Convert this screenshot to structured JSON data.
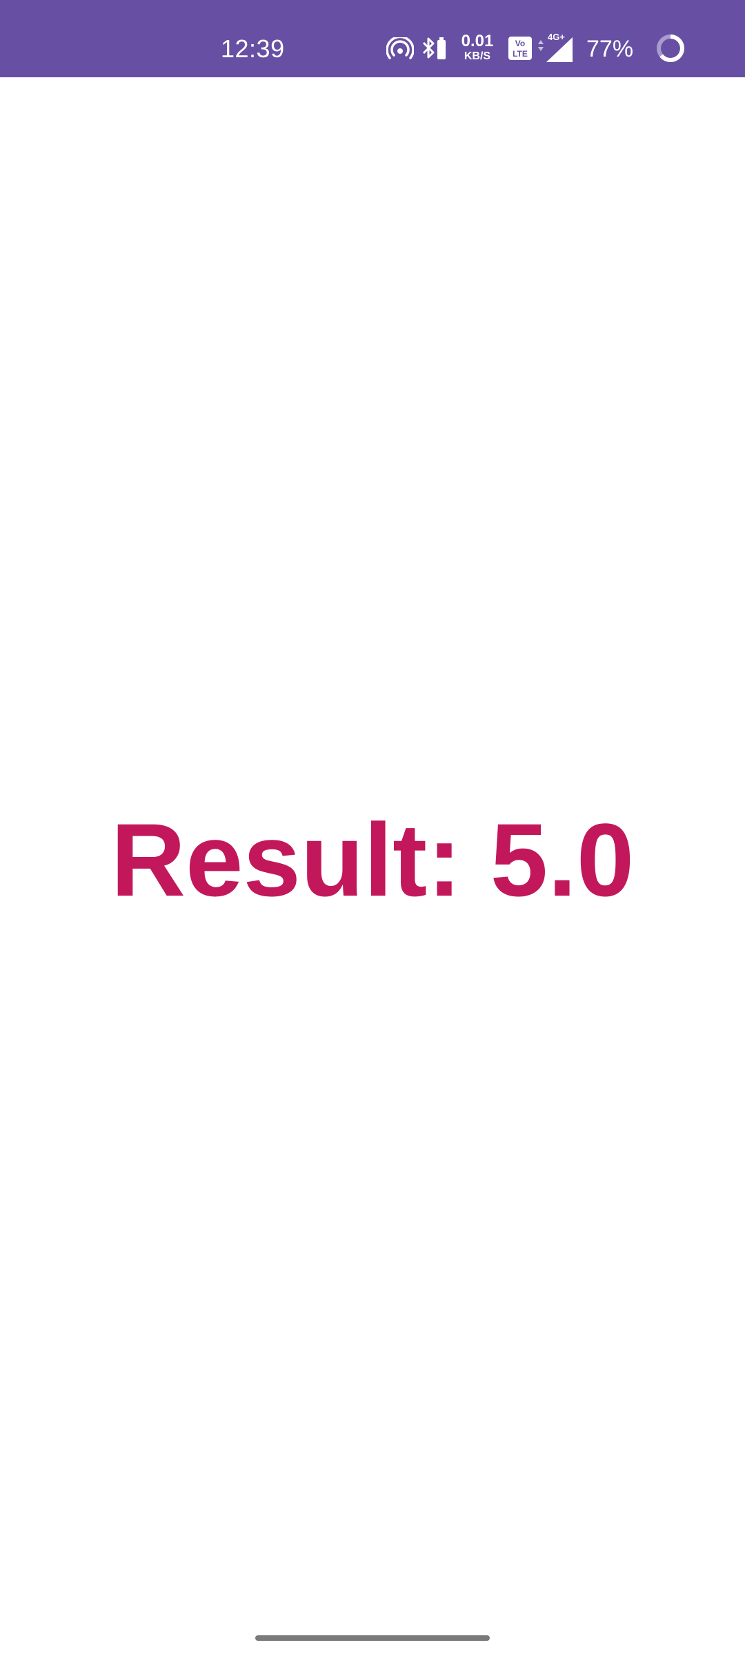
{
  "status_bar": {
    "time": "12:39",
    "net_speed_value": "0.01",
    "net_speed_unit": "KB/S",
    "volte_label": "Vo LTE",
    "network_type": "4G+",
    "battery_percent": "77%",
    "icons": [
      "hotspot-icon",
      "bluetooth-icon",
      "volte-icon",
      "signal-icon",
      "battery-ring-icon"
    ],
    "background_color": "#6750a4"
  },
  "main": {
    "result_text": "Result: 5.0",
    "result_color": "#c2185b"
  }
}
